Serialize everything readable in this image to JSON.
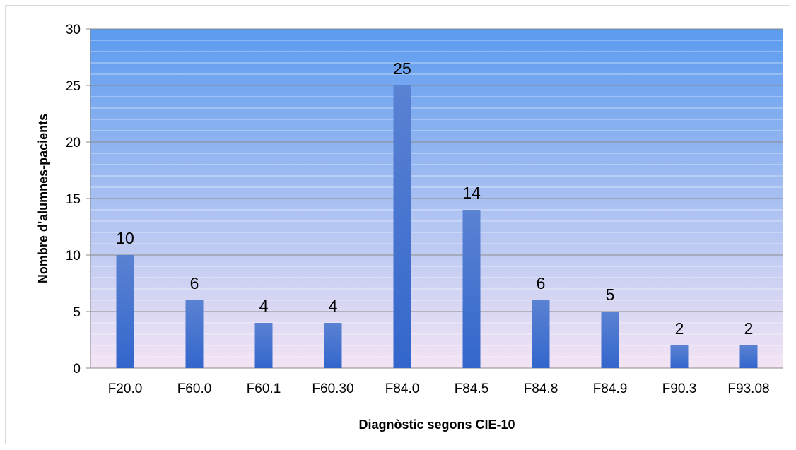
{
  "chart_data": {
    "type": "bar",
    "title": "",
    "xlabel": "Diagnòstic segons CIE-10",
    "ylabel": "Nombre d'alumnes-pacients",
    "categories": [
      "F20.0",
      "F60.0",
      "F60.1",
      "F60.30",
      "F84.0",
      "F84.5",
      "F84.8",
      "F84.9",
      "F90.3",
      "F93.08"
    ],
    "values": [
      10,
      6,
      4,
      4,
      25,
      14,
      6,
      5,
      2,
      2
    ],
    "ylim": [
      0,
      30
    ],
    "yticks": [
      0,
      5,
      10,
      15,
      20,
      25,
      30
    ],
    "minor_step": 1,
    "grid": true,
    "legend": "none",
    "bar_color": "#3366cc",
    "background_top": "#5b9bef",
    "background_bottom": "#f4e4f4"
  }
}
